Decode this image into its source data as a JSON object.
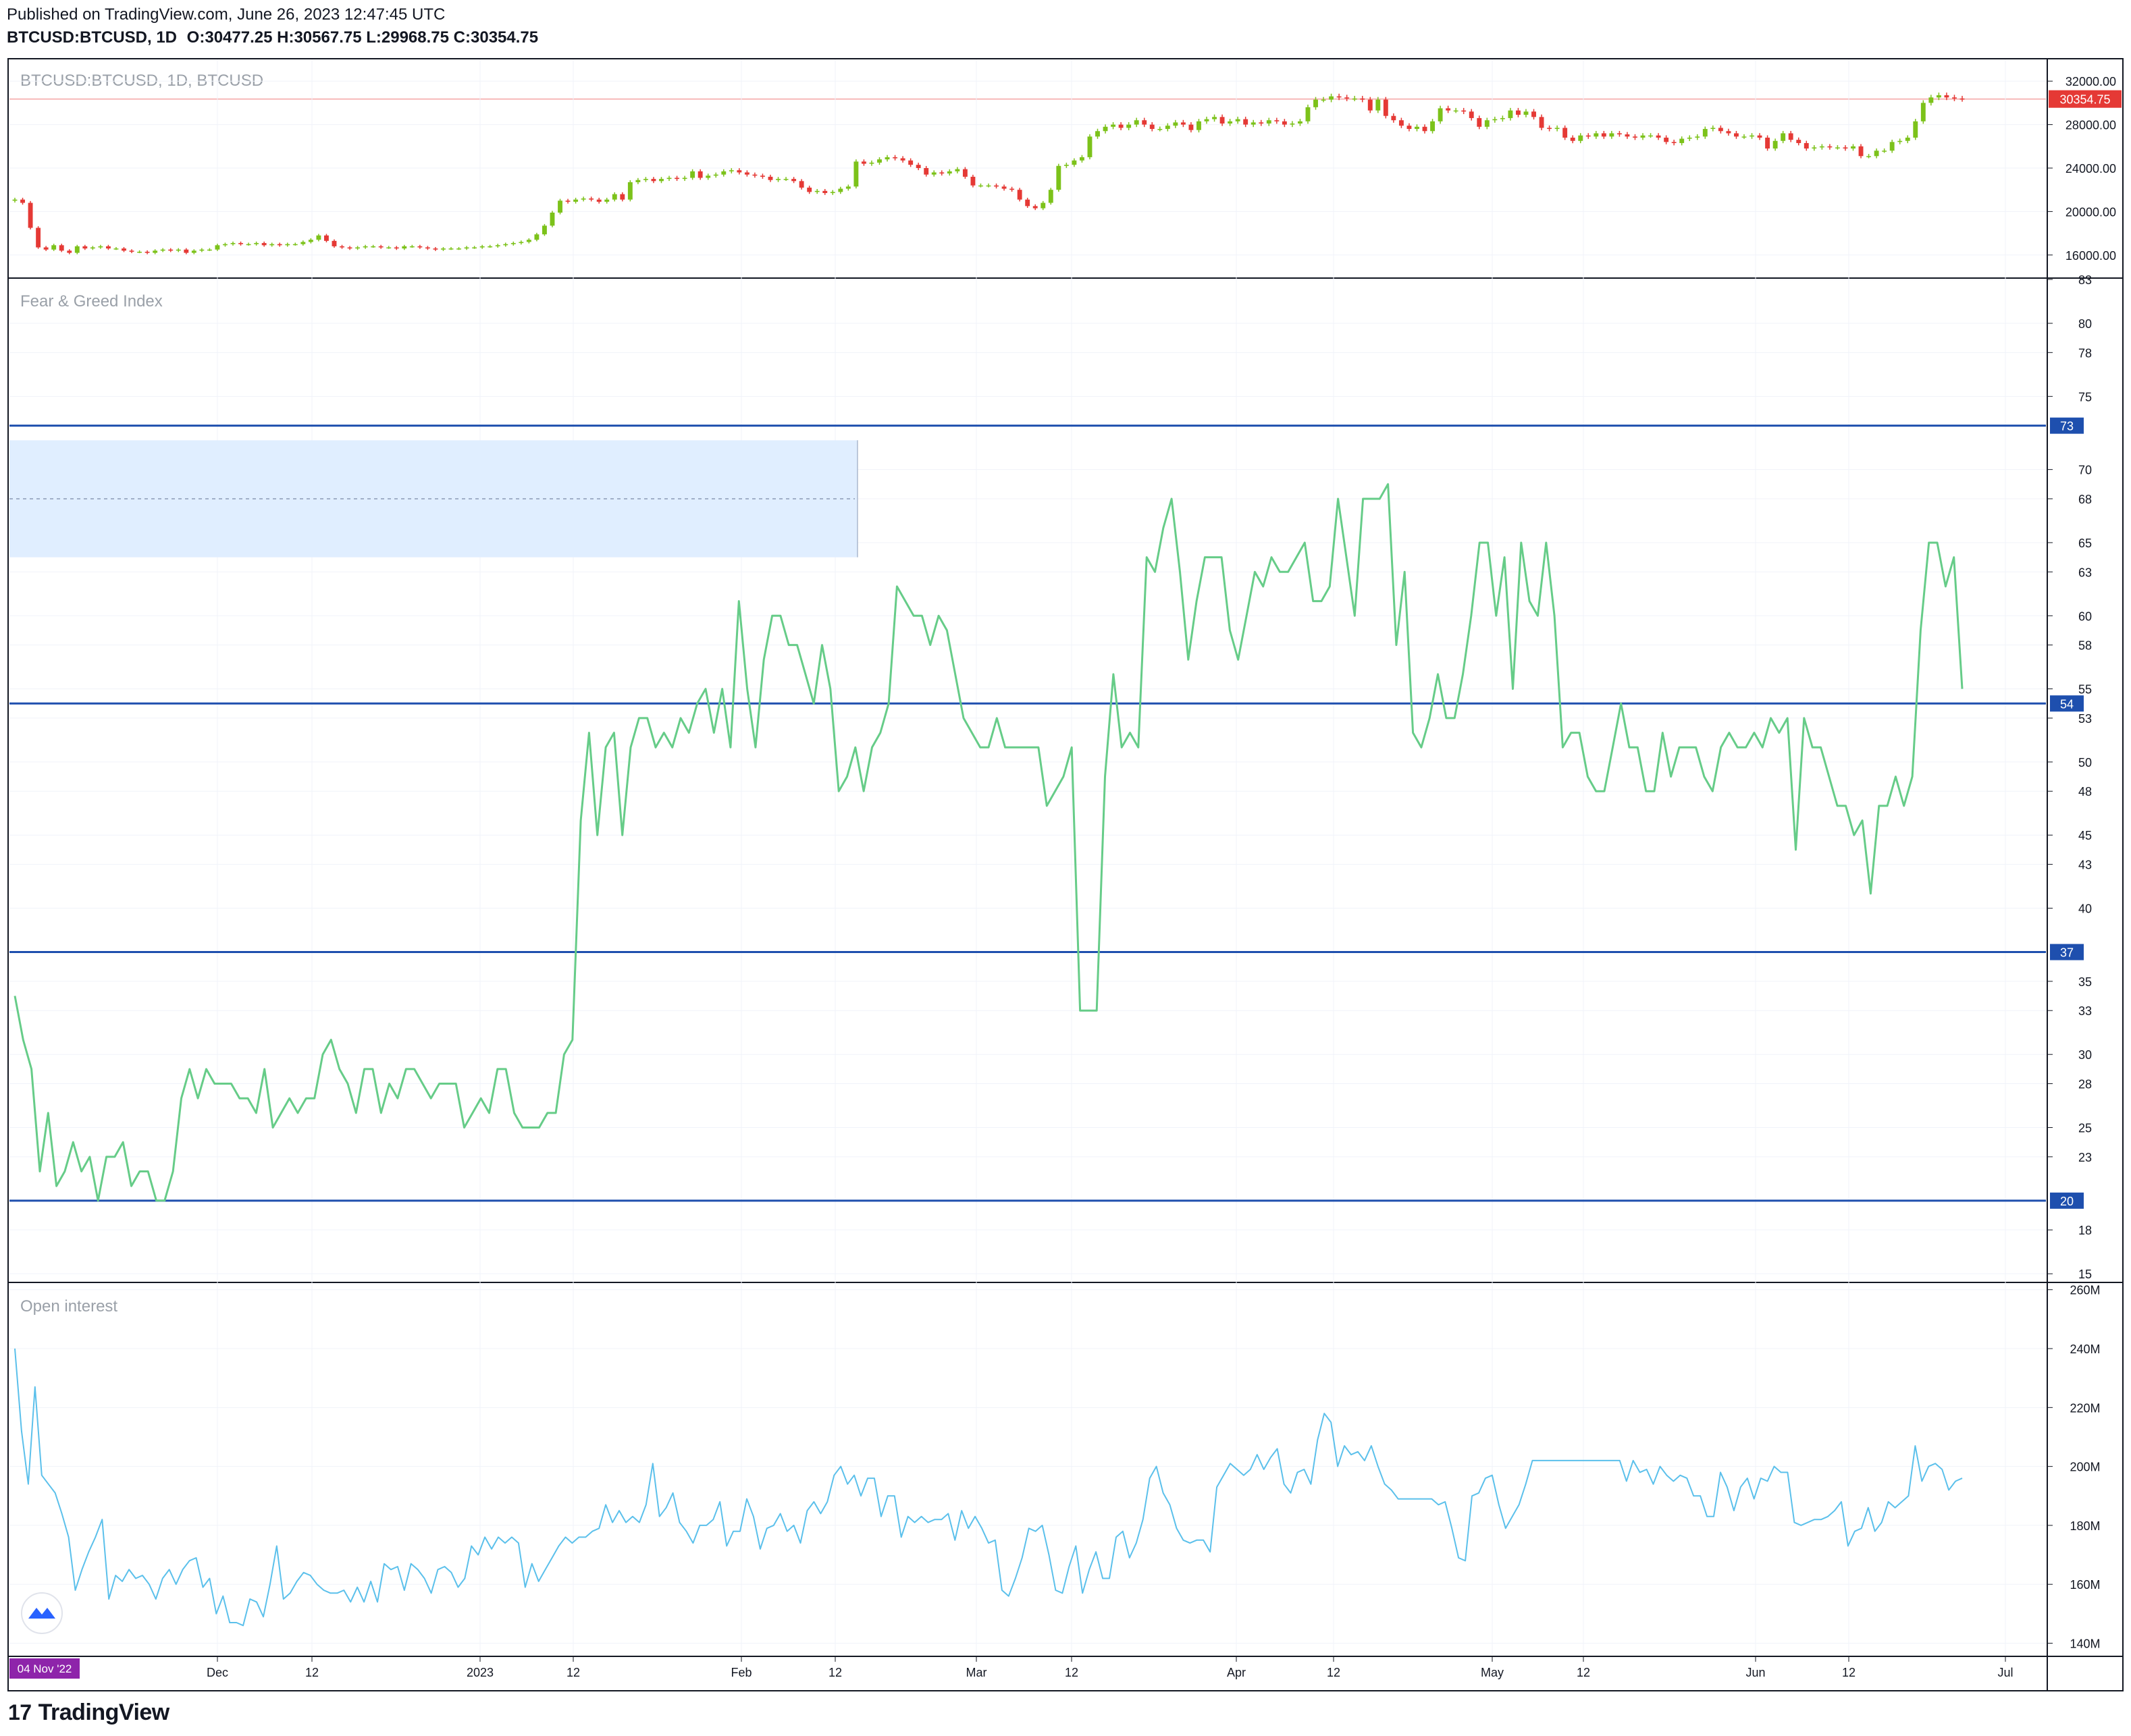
{
  "header": {
    "published": "Published on TradingView.com, June 26, 2023 12:47:45 UTC",
    "symbol": "BTCUSD:BTCUSD, 1D",
    "open_label": "O:",
    "open": "30477.25",
    "high_label": "H:",
    "high": "30567.75",
    "low_label": "L:",
    "low": "29968.75",
    "close_label": "C:",
    "close": "30354.75"
  },
  "footer": {
    "brand": "TradingView"
  },
  "colors": {
    "up": "#7cc21a",
    "down": "#e53935",
    "fng": "#66cc88",
    "oi": "#5bc0eb",
    "hline": "#1e4fae",
    "zone": "#e0eeff",
    "price_line": "#f7b8b8"
  },
  "chart_data": [
    {
      "type": "candlestick",
      "title": "BTCUSD:BTCUSD, 1D, BTCUSD",
      "ylim": [
        14000,
        34000
      ],
      "y_ticks": [
        "16000.00",
        "20000.00",
        "24000.00",
        "28000.00",
        "32000.00"
      ],
      "last_price_label": "30354.75",
      "last_price": 30354.75,
      "closes": [
        21100,
        20800,
        18500,
        16700,
        16500,
        16900,
        16400,
        16200,
        16800,
        16600,
        16700,
        16800,
        16600,
        16600,
        16400,
        16300,
        16300,
        16200,
        16400,
        16500,
        16400,
        16500,
        16200,
        16400,
        16500,
        16500,
        16900,
        17000,
        17100,
        17000,
        17000,
        17100,
        16900,
        17000,
        16900,
        17000,
        17000,
        17200,
        17400,
        17800,
        17300,
        16800,
        16700,
        16600,
        16700,
        16800,
        16800,
        16700,
        16700,
        16600,
        16800,
        16800,
        16700,
        16600,
        16500,
        16600,
        16600,
        16600,
        16700,
        16700,
        16800,
        16800,
        16900,
        17000,
        17100,
        17200,
        17400,
        17900,
        18700,
        19900,
        21000,
        20900,
        21100,
        21200,
        21100,
        20900,
        21100,
        21600,
        21100,
        22700,
        22900,
        23000,
        22800,
        23000,
        23100,
        23000,
        23100,
        23700,
        23100,
        23300,
        23400,
        23700,
        23800,
        23600,
        23400,
        23300,
        23200,
        22900,
        23000,
        23000,
        22800,
        22200,
        21800,
        21900,
        21700,
        21800,
        22100,
        22300,
        24600,
        24400,
        24500,
        24800,
        25000,
        24900,
        24700,
        24300,
        24000,
        23400,
        23600,
        23500,
        23700,
        23900,
        23200,
        22400,
        22400,
        22400,
        22300,
        22100,
        22000,
        21100,
        20500,
        20300,
        20800,
        22000,
        24200,
        24300,
        24700,
        25000,
        26900,
        27400,
        27800,
        28000,
        27700,
        28000,
        28400,
        28000,
        27600,
        27600,
        27900,
        28200,
        28000,
        27500,
        28300,
        28500,
        28700,
        28100,
        28300,
        28500,
        28000,
        28200,
        28100,
        28400,
        28300,
        28000,
        28100,
        28300,
        29600,
        30300,
        30300,
        30600,
        30500,
        30400,
        30400,
        30300,
        29300,
        30300,
        28800,
        28400,
        27900,
        27600,
        27800,
        27400,
        28300,
        29500,
        29300,
        29300,
        29200,
        28600,
        27800,
        28400,
        28500,
        28600,
        29300,
        28900,
        29200,
        28700,
        27700,
        27600,
        27700,
        26800,
        26500,
        27000,
        26900,
        27200,
        26900,
        27200,
        27100,
        26900,
        26800,
        27000,
        27000,
        26800,
        26400,
        26300,
        26700,
        26800,
        26900,
        27600,
        27700,
        27400,
        27200,
        26900,
        26900,
        27000,
        26800,
        25800,
        26500,
        27200,
        26600,
        26300,
        25800,
        25900,
        26000,
        25900,
        25900,
        25800,
        26000,
        25100,
        25100,
        25600,
        25600,
        26400,
        26500,
        26800,
        28300,
        30000,
        30500,
        30700,
        30500,
        30400,
        30350
      ]
    },
    {
      "type": "line",
      "title": "Fear & Greed Index",
      "ylim": [
        14.5,
        83
      ],
      "y_ticks": [
        "15",
        "18",
        "20",
        "23",
        "25",
        "28",
        "30",
        "33",
        "35",
        "37",
        "40",
        "43",
        "45",
        "48",
        "50",
        "53",
        "55",
        "58",
        "60",
        "63",
        "65",
        "68",
        "70",
        "73",
        "75",
        "78",
        "80",
        "83"
      ],
      "levels": [
        73,
        54,
        37,
        20
      ],
      "level_labels": [
        "73",
        "54",
        "37",
        "20"
      ],
      "zone_range": [
        64,
        72
      ],
      "values": [
        34,
        31,
        29,
        22,
        26,
        21,
        22,
        24,
        22,
        23,
        20,
        23,
        23,
        24,
        21,
        22,
        22,
        20,
        20,
        22,
        27,
        29,
        27,
        29,
        28,
        28,
        28,
        27,
        27,
        26,
        29,
        25,
        26,
        27,
        26,
        27,
        27,
        30,
        31,
        29,
        28,
        26,
        29,
        29,
        26,
        28,
        27,
        29,
        29,
        28,
        27,
        28,
        28,
        28,
        25,
        26,
        27,
        26,
        29,
        29,
        26,
        25,
        25,
        25,
        26,
        26,
        30,
        31,
        46,
        52,
        45,
        51,
        52,
        45,
        51,
        53,
        53,
        51,
        52,
        51,
        53,
        52,
        54,
        55,
        52,
        55,
        51,
        61,
        55,
        51,
        57,
        60,
        60,
        58,
        58,
        56,
        54,
        58,
        55,
        48,
        49,
        51,
        48,
        51,
        52,
        54,
        62,
        61,
        60,
        60,
        58,
        60,
        59,
        56,
        53,
        52,
        51,
        51,
        53,
        51,
        51,
        51,
        51,
        51,
        47,
        48,
        49,
        51,
        33,
        33,
        33,
        49,
        56,
        51,
        52,
        51,
        64,
        63,
        66,
        68,
        63,
        57,
        61,
        64,
        64,
        64,
        59,
        57,
        60,
        63,
        62,
        64,
        63,
        63,
        64,
        65,
        61,
        61,
        62,
        68,
        64,
        60,
        68,
        68,
        68,
        69,
        58,
        63,
        52,
        51,
        53,
        56,
        53,
        53,
        56,
        60,
        65,
        65,
        60,
        64,
        55,
        65,
        61,
        60,
        65,
        60,
        51,
        52,
        52,
        49,
        48,
        48,
        51,
        54,
        51,
        51,
        48,
        48,
        52,
        49,
        51,
        51,
        51,
        49,
        48,
        51,
        52,
        51,
        51,
        52,
        51,
        53,
        52,
        53,
        44,
        53,
        51,
        51,
        49,
        47,
        47,
        45,
        46,
        41,
        47,
        47,
        49,
        47,
        49,
        59,
        65,
        65,
        62,
        64,
        55
      ]
    },
    {
      "type": "line",
      "title": "Open interest",
      "ylim": [
        136,
        262
      ],
      "y_ticks": [
        "140M",
        "160M",
        "180M",
        "200M",
        "220M",
        "240M",
        "260M"
      ],
      "values": [
        240,
        212,
        194,
        227,
        197,
        194,
        191,
        184,
        176,
        158,
        165,
        171,
        176,
        182,
        155,
        163,
        161,
        165,
        162,
        163,
        160,
        155,
        162,
        165,
        160,
        165,
        168,
        169,
        159,
        162,
        150,
        156,
        147,
        147,
        146,
        155,
        154,
        149,
        160,
        173,
        155,
        157,
        161,
        164,
        163,
        160,
        158,
        157,
        157,
        158,
        154,
        159,
        154,
        161,
        154,
        167,
        165,
        166,
        158,
        167,
        165,
        162,
        157,
        165,
        166,
        164,
        159,
        162,
        173,
        170,
        176,
        172,
        176,
        174,
        176,
        174,
        159,
        167,
        161,
        165,
        169,
        173,
        176,
        174,
        176,
        176,
        178,
        179,
        187,
        181,
        185,
        181,
        183,
        181,
        187,
        201,
        183,
        186,
        191,
        181,
        178,
        174,
        180,
        180,
        182,
        188,
        173,
        178,
        178,
        189,
        183,
        172,
        179,
        180,
        184,
        178,
        180,
        174,
        185,
        188,
        184,
        188,
        197,
        200,
        194,
        197,
        190,
        196,
        196,
        183,
        190,
        190,
        176,
        183,
        181,
        183,
        181,
        182,
        182,
        184,
        175,
        185,
        179,
        183,
        179,
        174,
        175,
        158,
        156,
        162,
        169,
        179,
        178,
        180,
        170,
        158,
        157,
        166,
        173,
        157,
        165,
        171,
        162,
        162,
        176,
        178,
        169,
        174,
        182,
        196,
        200,
        191,
        187,
        179,
        175,
        174,
        175,
        175,
        171,
        193,
        197,
        201,
        199,
        197,
        199,
        204,
        199,
        203,
        206,
        194,
        191,
        198,
        199,
        194,
        209,
        218,
        215,
        200,
        207,
        204,
        205,
        202,
        207,
        200,
        194,
        192,
        189,
        189,
        189,
        189,
        189,
        189,
        187,
        188,
        179,
        169,
        168,
        190,
        191,
        196,
        197,
        187,
        179,
        183,
        187,
        194,
        202,
        202,
        202,
        202,
        202,
        202,
        202,
        202,
        202,
        202,
        202,
        202,
        202,
        202,
        195,
        202,
        198,
        199,
        194,
        200,
        197,
        195,
        197,
        196,
        190,
        190,
        183,
        183,
        198,
        193,
        185,
        193,
        196,
        189,
        196,
        195,
        200,
        198,
        198,
        181,
        180,
        181,
        182,
        182,
        183,
        185,
        188,
        173,
        178,
        179,
        186,
        178,
        181,
        188,
        186,
        188,
        190,
        207,
        195,
        200,
        201,
        199,
        192,
        195,
        196
      ]
    }
  ],
  "x_axis": {
    "labels": [
      "Dec",
      "12",
      "2023",
      "12",
      "Feb",
      "12",
      "Mar",
      "12",
      "Apr",
      "12",
      "May",
      "12",
      "Jun",
      "12",
      "Jul"
    ],
    "cursor_label": "04 Nov '22"
  }
}
